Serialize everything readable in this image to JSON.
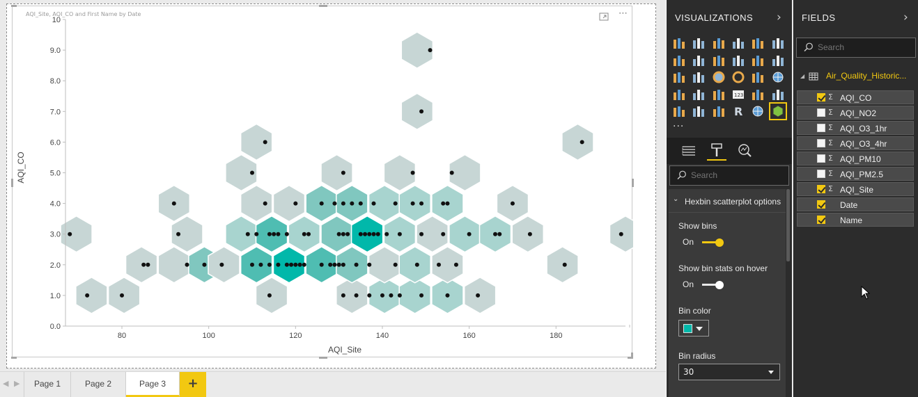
{
  "visual": {
    "title": "AQI_Site, AQI_CO and First Name by Date"
  },
  "chart_data": {
    "type": "scatter",
    "subtype": "hexbin",
    "xlabel": "AQI_Site",
    "ylabel": "AQI_CO",
    "xlim": [
      67,
      196
    ],
    "ylim": [
      0,
      10
    ],
    "x_ticks": [
      "80",
      "100",
      "120",
      "140",
      "160",
      "180"
    ],
    "y_ticks": [
      "0.0",
      "1.0",
      "2.0",
      "3.0",
      "4.0",
      "5.0",
      "6.0",
      "7.0",
      "8.0",
      "9.0",
      "10"
    ],
    "bin_color": "#01b8aa",
    "bin_base_color": "#c7d6d5",
    "points": [
      [
        72,
        1
      ],
      [
        80,
        1
      ],
      [
        114,
        1
      ],
      [
        131,
        1
      ],
      [
        134,
        1
      ],
      [
        137,
        1
      ],
      [
        140,
        1
      ],
      [
        142,
        1
      ],
      [
        144,
        1
      ],
      [
        149,
        1
      ],
      [
        155,
        1
      ],
      [
        162,
        1
      ],
      [
        85,
        2
      ],
      [
        86,
        2
      ],
      [
        95,
        2
      ],
      [
        99,
        2
      ],
      [
        103,
        2
      ],
      [
        110,
        2
      ],
      [
        112,
        2
      ],
      [
        114,
        2
      ],
      [
        116,
        2
      ],
      [
        118,
        2
      ],
      [
        119,
        2
      ],
      [
        120,
        2
      ],
      [
        121,
        2
      ],
      [
        122,
        2
      ],
      [
        126,
        2
      ],
      [
        128,
        2
      ],
      [
        129,
        2
      ],
      [
        130,
        2
      ],
      [
        131,
        2
      ],
      [
        134,
        2
      ],
      [
        137,
        2
      ],
      [
        143,
        2
      ],
      [
        148,
        2
      ],
      [
        153,
        2
      ],
      [
        157,
        2
      ],
      [
        182,
        2
      ],
      [
        68,
        3
      ],
      [
        93,
        3
      ],
      [
        109,
        3
      ],
      [
        111,
        3
      ],
      [
        114,
        3
      ],
      [
        115,
        3
      ],
      [
        116,
        3
      ],
      [
        118,
        3
      ],
      [
        122,
        3
      ],
      [
        123,
        3
      ],
      [
        130,
        3
      ],
      [
        131,
        3
      ],
      [
        132,
        3
      ],
      [
        135,
        3
      ],
      [
        136,
        3
      ],
      [
        137,
        3
      ],
      [
        138,
        3
      ],
      [
        139,
        3
      ],
      [
        141,
        3
      ],
      [
        144,
        3
      ],
      [
        149,
        3
      ],
      [
        154,
        3
      ],
      [
        160,
        3
      ],
      [
        166,
        3
      ],
      [
        167,
        3
      ],
      [
        174,
        3
      ],
      [
        195,
        3
      ],
      [
        92,
        4
      ],
      [
        113,
        4
      ],
      [
        120,
        4
      ],
      [
        126,
        4
      ],
      [
        129,
        4
      ],
      [
        131,
        4
      ],
      [
        133,
        4
      ],
      [
        135,
        4
      ],
      [
        138,
        4
      ],
      [
        143,
        4
      ],
      [
        147,
        4
      ],
      [
        149,
        4
      ],
      [
        154,
        4
      ],
      [
        155,
        4
      ],
      [
        170,
        4
      ],
      [
        110,
        5
      ],
      [
        131,
        5
      ],
      [
        147,
        5
      ],
      [
        156,
        5
      ],
      [
        113,
        6
      ],
      [
        186,
        6
      ],
      [
        149,
        7
      ],
      [
        151,
        9
      ]
    ],
    "bins": [
      {
        "x": 73,
        "y": 1,
        "level": 0
      },
      {
        "x": 80.5,
        "y": 1,
        "level": 0
      },
      {
        "x": 114.5,
        "y": 1,
        "level": 0
      },
      {
        "x": 133,
        "y": 1,
        "level": 0
      },
      {
        "x": 140.5,
        "y": 1,
        "level": 1
      },
      {
        "x": 147.5,
        "y": 1,
        "level": 1
      },
      {
        "x": 155,
        "y": 1,
        "level": 1
      },
      {
        "x": 162.5,
        "y": 1,
        "level": 0
      },
      {
        "x": 84.5,
        "y": 2,
        "level": 0
      },
      {
        "x": 92,
        "y": 2,
        "level": 0
      },
      {
        "x": 99,
        "y": 2,
        "level": 2
      },
      {
        "x": 103.5,
        "y": 2,
        "level": 0
      },
      {
        "x": 111,
        "y": 2,
        "level": 3
      },
      {
        "x": 118.5,
        "y": 2,
        "level": 4
      },
      {
        "x": 126,
        "y": 2,
        "level": 3
      },
      {
        "x": 133,
        "y": 2,
        "level": 2
      },
      {
        "x": 140.5,
        "y": 2,
        "level": 0
      },
      {
        "x": 147.5,
        "y": 2,
        "level": 1
      },
      {
        "x": 155,
        "y": 2,
        "level": 0
      },
      {
        "x": 181.5,
        "y": 2,
        "level": 0
      },
      {
        "x": 69.5,
        "y": 3,
        "level": 0
      },
      {
        "x": 95,
        "y": 3,
        "level": 0
      },
      {
        "x": 107.5,
        "y": 3,
        "level": 1
      },
      {
        "x": 114.5,
        "y": 3,
        "level": 3
      },
      {
        "x": 122,
        "y": 3,
        "level": 1
      },
      {
        "x": 129.5,
        "y": 3,
        "level": 2
      },
      {
        "x": 136.5,
        "y": 3,
        "level": 4
      },
      {
        "x": 144,
        "y": 3,
        "level": 1
      },
      {
        "x": 151.5,
        "y": 3,
        "level": 0
      },
      {
        "x": 159,
        "y": 3,
        "level": 1
      },
      {
        "x": 166,
        "y": 3,
        "level": 1
      },
      {
        "x": 173.5,
        "y": 3,
        "level": 0
      },
      {
        "x": 196,
        "y": 3,
        "level": 0
      },
      {
        "x": 92,
        "y": 4,
        "level": 0
      },
      {
        "x": 111,
        "y": 4,
        "level": 0
      },
      {
        "x": 118.5,
        "y": 4,
        "level": 0
      },
      {
        "x": 126,
        "y": 4,
        "level": 2
      },
      {
        "x": 133,
        "y": 4,
        "level": 2
      },
      {
        "x": 140.5,
        "y": 4,
        "level": 1
      },
      {
        "x": 147.5,
        "y": 4,
        "level": 1
      },
      {
        "x": 155,
        "y": 4,
        "level": 1
      },
      {
        "x": 170,
        "y": 4,
        "level": 0
      },
      {
        "x": 107.5,
        "y": 5,
        "level": 0
      },
      {
        "x": 129.5,
        "y": 5,
        "level": 0
      },
      {
        "x": 144,
        "y": 5,
        "level": 0
      },
      {
        "x": 159,
        "y": 5,
        "level": 0
      },
      {
        "x": 111,
        "y": 6,
        "level": 0
      },
      {
        "x": 185,
        "y": 6,
        "level": 0
      },
      {
        "x": 148,
        "y": 7,
        "level": 0
      },
      {
        "x": 148,
        "y": 9,
        "level": 0
      }
    ]
  },
  "page_tabs": {
    "items": [
      {
        "label": "Page 1",
        "active": false
      },
      {
        "label": "Page 2",
        "active": false
      },
      {
        "label": "Page 3",
        "active": true
      }
    ],
    "add_label": "+"
  },
  "visualizations": {
    "header": "VISUALIZATIONS",
    "more": "...",
    "icons": [
      "stacked-bar-icon",
      "stacked-column-icon",
      "clustered-bar-icon",
      "clustered-column-icon",
      "100-bar-icon",
      "100-column-icon",
      "line-chart-icon",
      "area-chart-icon",
      "stacked-area-icon",
      "line-column-icon",
      "line-clustered-icon",
      "ribbon-chart-icon",
      "waterfall-icon",
      "scatter-icon",
      "pie-icon",
      "donut-icon",
      "treemap-icon",
      "map-icon",
      "filled-map-icon",
      "funnel-icon",
      "gauge-icon",
      "card-icon",
      "multirow-card-icon",
      "kpi-icon",
      "slicer-icon",
      "table-icon",
      "matrix-icon",
      "r-visual-icon",
      "globe-icon",
      "hexbin-icon"
    ],
    "selected_icon": "hexbin-icon",
    "search_placeholder": "Search",
    "section_title": "Hexbin scatterplot options",
    "show_bins_label": "Show bins",
    "show_bins_state": "On",
    "show_bin_stats_label": "Show bin stats on hover",
    "show_bin_stats_state": "On",
    "bin_color_label": "Bin color",
    "bin_color_value": "#01b8aa",
    "bin_radius_label": "Bin radius",
    "bin_radius_value": "30",
    "accent": "#f2c811"
  },
  "fields": {
    "header": "FIELDS",
    "search_placeholder": "Search",
    "table_name": "Air_Quality_Historic...",
    "items": [
      {
        "name": "AQI_CO",
        "checked": true,
        "sigma": true
      },
      {
        "name": "AQI_NO2",
        "checked": false,
        "sigma": true
      },
      {
        "name": "AQI_O3_1hr",
        "checked": false,
        "sigma": true
      },
      {
        "name": "AQI_O3_4hr",
        "checked": false,
        "sigma": true
      },
      {
        "name": "AQI_PM10",
        "checked": false,
        "sigma": true
      },
      {
        "name": "AQI_PM2.5",
        "checked": false,
        "sigma": true
      },
      {
        "name": "AQI_Site",
        "checked": true,
        "sigma": true
      },
      {
        "name": "Date",
        "checked": true,
        "sigma": false
      },
      {
        "name": "Name",
        "checked": true,
        "sigma": false
      }
    ]
  }
}
